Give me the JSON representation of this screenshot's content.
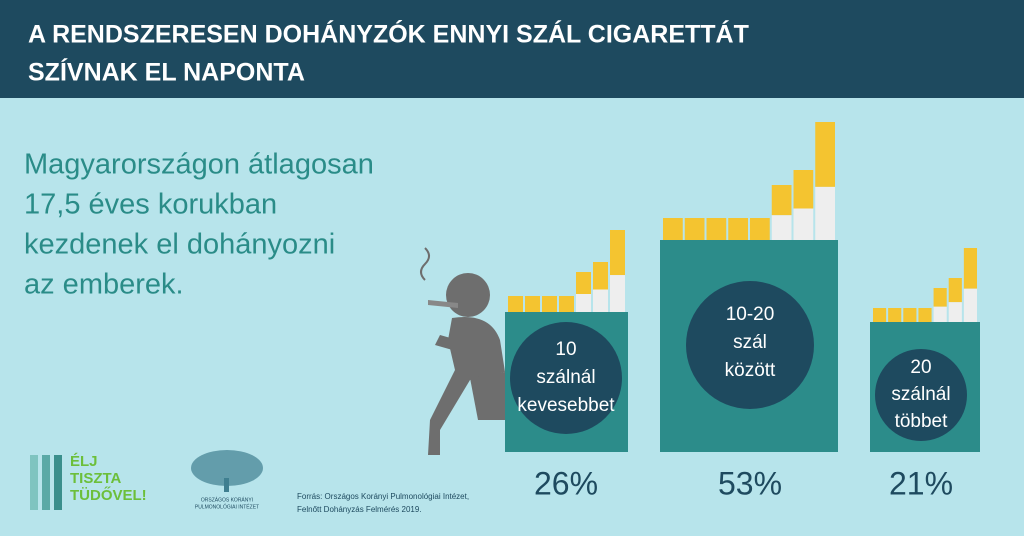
{
  "header": {
    "title": [
      "A RENDSZERESEN DOHÁNYZÓK ENNYI SZÁL CIGARETTÁT",
      "SZÍVNAK EL NAPONTA"
    ]
  },
  "intro": [
    "Magyarországon átlagosan",
    "17,5 éves korukban",
    "kezdenek el dohányozni",
    "az emberek."
  ],
  "groups": [
    {
      "label": [
        "10",
        "szálnál",
        "kevesebbet"
      ],
      "percent": "26%"
    },
    {
      "label": [
        "10-20",
        "szál",
        "között"
      ],
      "percent": "53%"
    },
    {
      "label": [
        "20",
        "szálnál",
        "többet"
      ],
      "percent": "21%"
    }
  ],
  "logos": {
    "campaign": [
      "ÉLJ",
      "TISZTA",
      "TÜDŐVEL!"
    ],
    "institute": [
      "ORSZÁGOS KORÁNYI",
      "PULMONOLÓGIAI INTÉZET"
    ]
  },
  "source": [
    "Forrás: Országos Korányi Pulmonológiai Intézet,",
    "Felnőtt Dohányzás Felmérés 2019."
  ]
}
